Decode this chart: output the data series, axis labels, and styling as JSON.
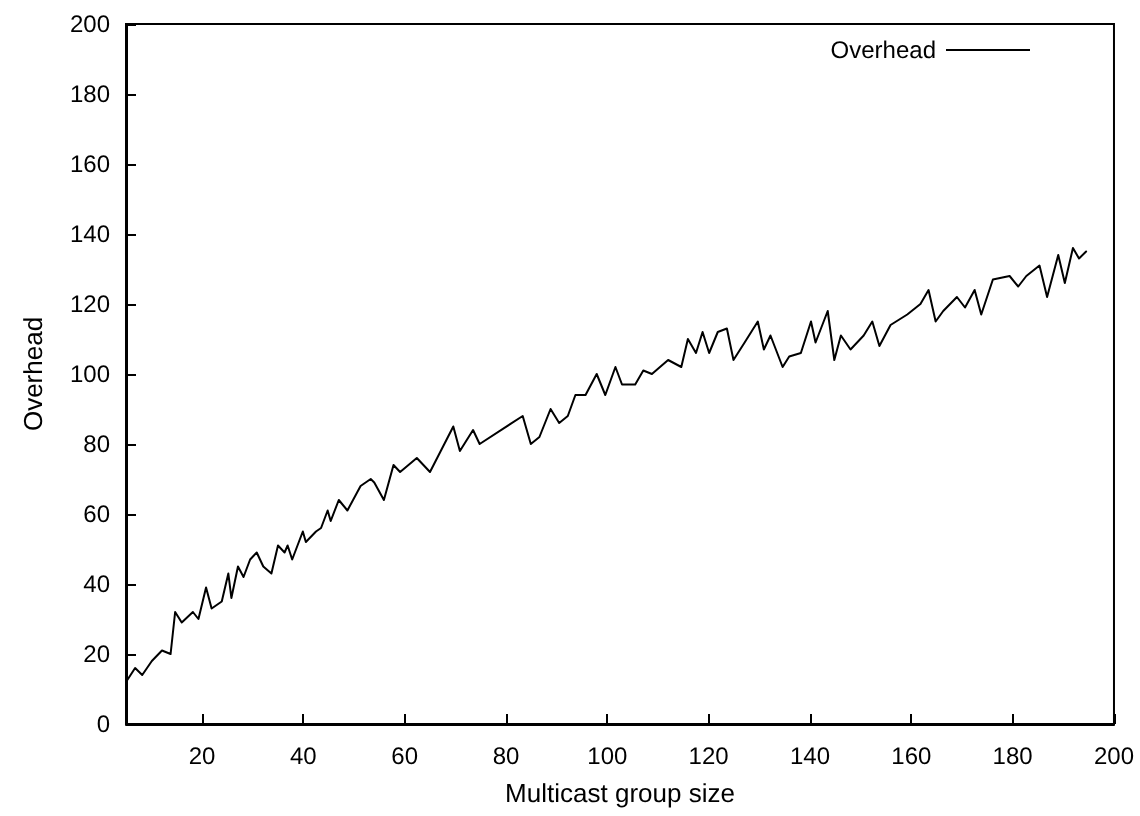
{
  "chart_data": {
    "type": "line",
    "xlabel": "Multicast group size",
    "ylabel": "Overhead",
    "xlim": [
      5,
      200
    ],
    "xticks": [
      20,
      40,
      60,
      80,
      100,
      120,
      140,
      160,
      180,
      200
    ],
    "ylim": [
      0,
      200
    ],
    "yticks": [
      0,
      20,
      40,
      60,
      80,
      100,
      120,
      140,
      160,
      180,
      200
    ],
    "grid": false,
    "legend": "top right",
    "marker": "none",
    "line_style": "solid",
    "series": [
      {
        "name": "Overhead",
        "color": "#000000",
        "x": [
          5,
          6.8,
          8.2,
          10.1,
          12.1,
          13.8,
          14.7,
          16,
          18.2,
          19.3,
          20.8,
          21.9,
          23.9,
          25.2,
          25.8,
          27.1,
          28.2,
          29.5,
          30.8,
          32.1,
          33.7,
          35,
          36.3,
          36.9,
          37.8,
          39.9,
          40.5,
          42.5,
          43.5,
          44.8,
          45.4,
          47,
          48.7,
          51.3,
          53.3,
          54,
          55.9,
          57.8,
          59.1,
          62.4,
          65,
          69.6,
          70.9,
          73.5,
          74.8,
          83.3,
          84.9,
          86.6,
          88.8,
          90.5,
          92.2,
          93.7,
          95.7,
          97.9,
          99.6,
          101.6,
          102.9,
          105.5,
          107.1,
          108.8,
          112,
          114.6,
          115.9,
          117.5,
          118.8,
          120.1,
          121.8,
          123.6,
          124.9,
          127.1,
          129.7,
          130.9,
          132.2,
          134.6,
          135.9,
          138.2,
          140.2,
          141.1,
          143.5,
          144.8,
          146.1,
          148,
          150.6,
          152.3,
          153.7,
          155.9,
          159.2,
          161.8,
          163.4,
          164.8,
          166.3,
          169,
          170.6,
          172.5,
          173.8,
          176.1,
          179.4,
          181.1,
          182.7,
          185.3,
          186.8,
          189,
          190.3,
          191.9,
          193.1,
          194.5
        ],
        "values": [
          12,
          16,
          14,
          18,
          21,
          20,
          32,
          29,
          32,
          30,
          39,
          33,
          35,
          43,
          36,
          45,
          42,
          47,
          49,
          45,
          43,
          51,
          49,
          51,
          47,
          55,
          52,
          55,
          56,
          61,
          58,
          64,
          61,
          68,
          70,
          69,
          64,
          74,
          72,
          76,
          72,
          85,
          78,
          84,
          80,
          88,
          80,
          82,
          90,
          86,
          88,
          94,
          94,
          100,
          94,
          102,
          97,
          97,
          101,
          100,
          104,
          102,
          110,
          106,
          112,
          106,
          112,
          113,
          104,
          109,
          115,
          107,
          111,
          102,
          105,
          106,
          115,
          109,
          118,
          104,
          111,
          107,
          111,
          115,
          108,
          114,
          117,
          120,
          124,
          115,
          118,
          122,
          119,
          124,
          117,
          127,
          128,
          125,
          128,
          131,
          122,
          134,
          126,
          136,
          133,
          135
        ]
      }
    ]
  }
}
